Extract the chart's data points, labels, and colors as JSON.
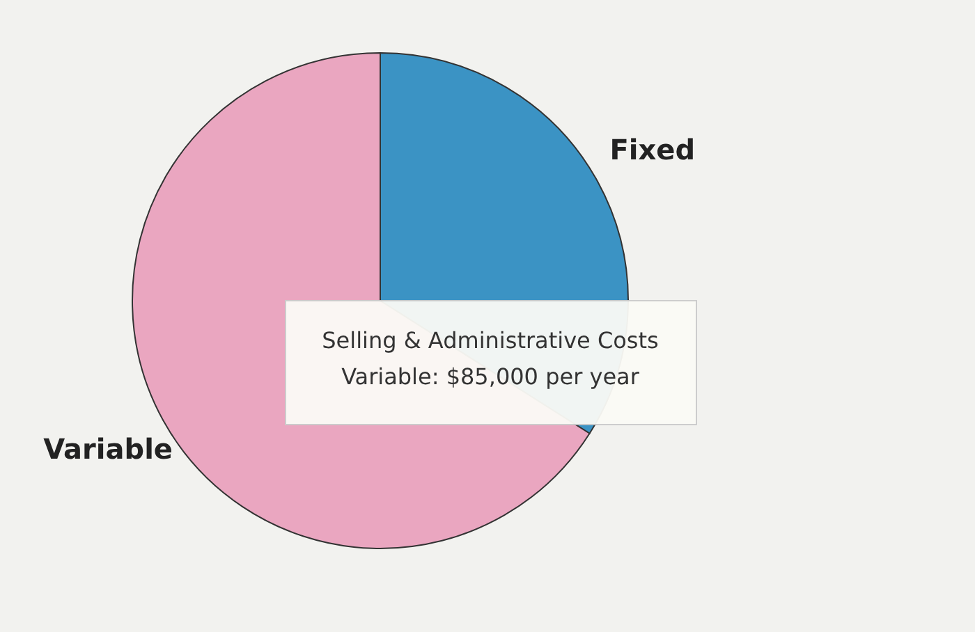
{
  "chart_data": {
    "type": "pie",
    "categories": [
      "Fixed",
      "Variable"
    ],
    "values": [
      34,
      66
    ],
    "colors": [
      "#3b93c4",
      "#eaa6c0"
    ],
    "annotations": [
      "Selling & Administrative Costs",
      "Variable: $85,000 per year"
    ]
  }
}
